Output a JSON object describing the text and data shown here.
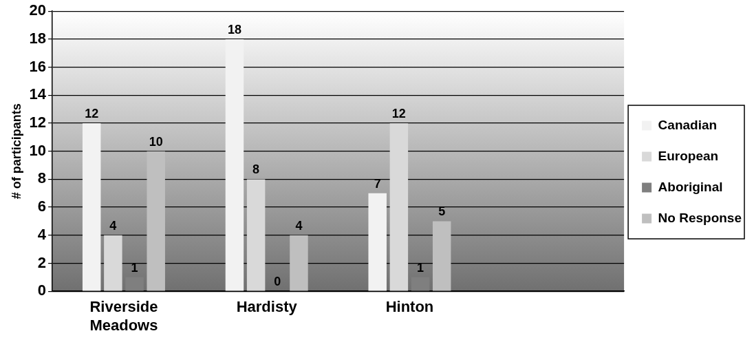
{
  "chart_data": {
    "type": "bar",
    "ylabel": "# of participants",
    "categories": [
      "Riverside Meadows",
      "Hardisty",
      "Hinton",
      null
    ],
    "series": [
      {
        "name": "Canadian",
        "color": "#f2f2f2",
        "values": [
          12,
          18,
          7,
          null
        ]
      },
      {
        "name": "European",
        "color": "#d9d9d9",
        "values": [
          4,
          8,
          12,
          null
        ]
      },
      {
        "name": "Aboriginal",
        "color": "#7f7f7f",
        "values": [
          1,
          0,
          1,
          null
        ]
      },
      {
        "name": "No Response",
        "color": "#bfbfbf",
        "values": [
          10,
          4,
          5,
          null
        ]
      }
    ],
    "ylim": [
      0,
      20
    ],
    "yticks": [
      0,
      2,
      4,
      6,
      8,
      10,
      12,
      14,
      16,
      18,
      20
    ],
    "grid": "y",
    "legend": "right",
    "data_labels": true
  }
}
